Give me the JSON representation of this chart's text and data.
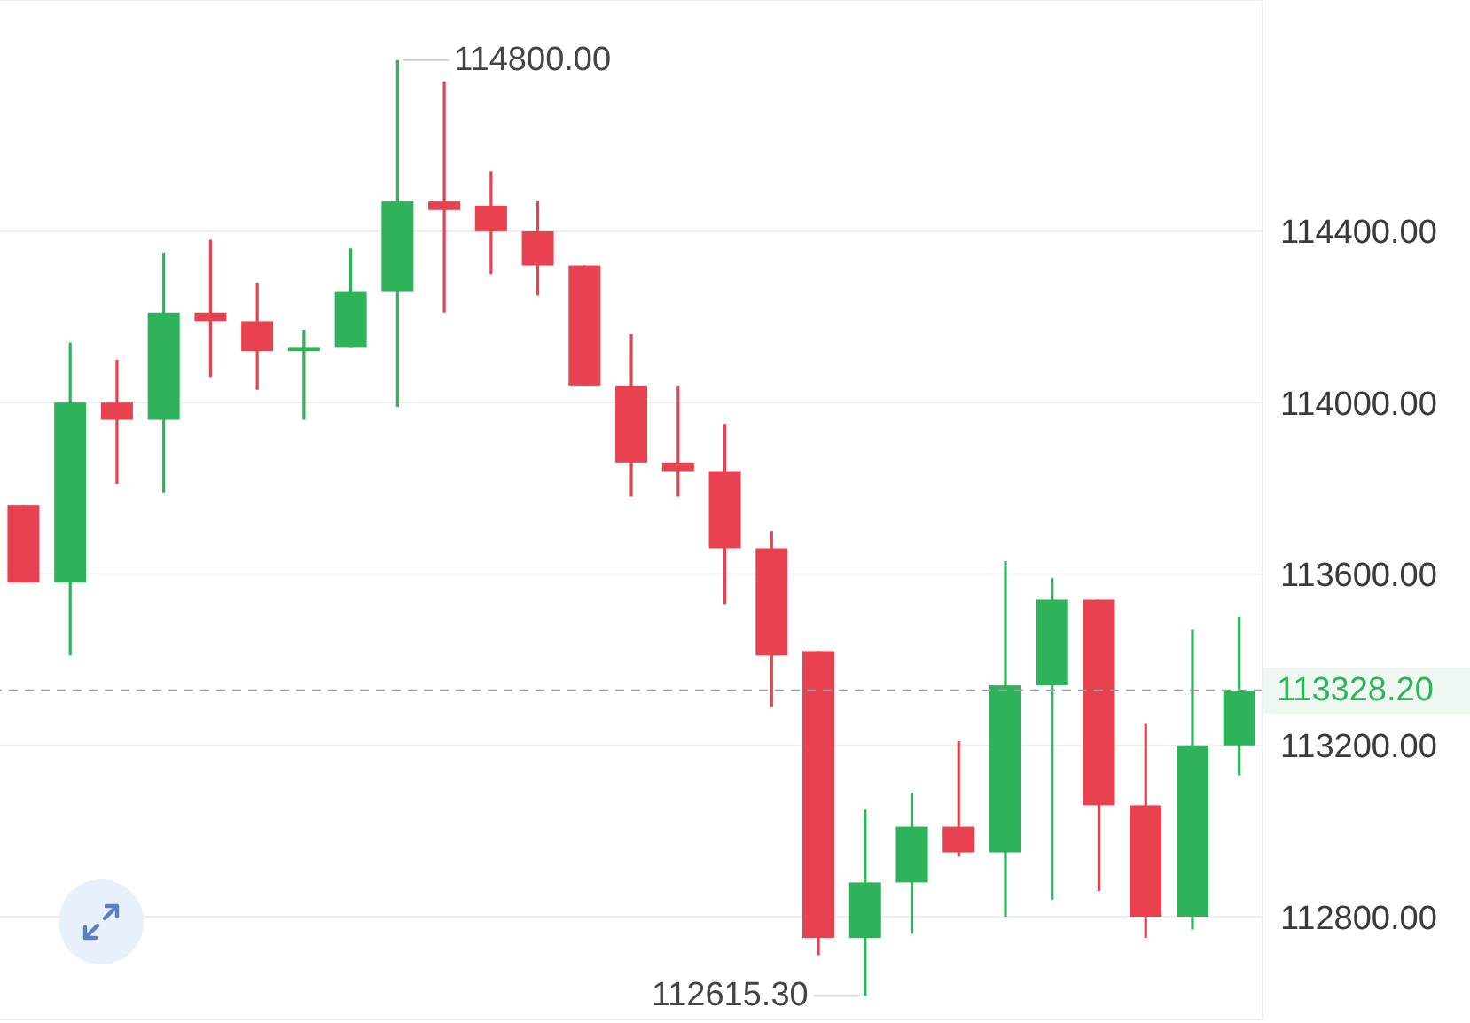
{
  "chart_data": {
    "type": "candlestick",
    "categories": [
      null,
      null,
      null,
      null,
      null,
      null,
      null,
      null,
      null,
      null,
      null,
      null,
      null,
      null,
      null,
      null,
      null,
      null,
      null,
      null,
      null,
      null,
      null,
      null,
      null,
      null,
      null
    ],
    "ohlc": [
      [
        113760,
        113760,
        113580,
        113580
      ],
      [
        113580,
        114140,
        113410,
        114000
      ],
      [
        114000,
        114100,
        113810,
        113960
      ],
      [
        113960,
        114350,
        113790,
        114210
      ],
      [
        114210,
        114380,
        114060,
        114190
      ],
      [
        114190,
        114280,
        114030,
        114120
      ],
      [
        114120,
        114170,
        113960,
        114130
      ],
      [
        114130,
        114360,
        114130,
        114260
      ],
      [
        114260,
        114800,
        113990,
        114470
      ],
      [
        114470,
        114750,
        114210,
        114450
      ],
      [
        114460,
        114540,
        114300,
        114400
      ],
      [
        114400,
        114470,
        114250,
        114320
      ],
      [
        114320,
        114320,
        114040,
        114040
      ],
      [
        114040,
        114160,
        113780,
        113860
      ],
      [
        113860,
        114040,
        113780,
        113840
      ],
      [
        113840,
        113950,
        113530,
        113660
      ],
      [
        113660,
        113700,
        113290,
        113410
      ],
      [
        113420,
        113420,
        112710,
        112750
      ],
      [
        112750,
        113050,
        112615.3,
        112880
      ],
      [
        112880,
        113090,
        112760,
        113010
      ],
      [
        113010,
        113210,
        112940,
        112950
      ],
      [
        112950,
        113630,
        112800,
        113340
      ],
      [
        113340,
        113590,
        112840,
        113540
      ],
      [
        113540,
        113540,
        112860,
        113060
      ],
      [
        113060,
        113250,
        112750,
        112800
      ],
      [
        112800,
        113470,
        112770,
        113200
      ],
      [
        113200,
        113500,
        113130,
        113328.2
      ]
    ],
    "colors": [
      "#e8414f",
      "#2eb35b",
      "#e8414f",
      "#2eb35b",
      "#e8414f",
      "#e8414f",
      "#2eb35b",
      "#2eb35b",
      "#2eb35b",
      "#e8414f",
      "#e8414f",
      "#e8414f",
      "#e8414f",
      "#e8414f",
      "#e8414f",
      "#e8414f",
      "#e8414f",
      "#e8414f",
      "#2eb35b",
      "#2eb35b",
      "#e8414f",
      "#2eb35b",
      "#2eb35b",
      "#e8414f",
      "#e8414f",
      "#2eb35b",
      "#2eb35b"
    ],
    "ylim": [
      112560,
      114940
    ],
    "yticks": [
      {
        "value": 112800,
        "label": "112800.00"
      },
      {
        "value": 113200,
        "label": "113200.00"
      },
      {
        "value": 113600,
        "label": "113600.00"
      },
      {
        "value": 114000,
        "label": "114000.00"
      },
      {
        "value": 114400,
        "label": "114400.00"
      }
    ],
    "grid": "y",
    "tick_labels": "y",
    "ref_lines": [
      {
        "axis": "y",
        "value": 113328.2,
        "label": "113328.20",
        "color": "#9e9e9e",
        "line_style": "dashed"
      }
    ],
    "annotations": [
      "114800.00",
      "112615.30"
    ]
  }
}
